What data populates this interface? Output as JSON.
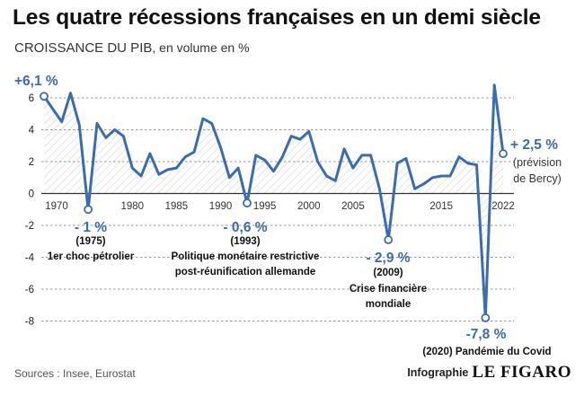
{
  "header": {
    "title": "Les quatre récessions françaises en un demi siècle",
    "subtitle_main": "CROISSANCE DU PIB",
    "subtitle_unit": ", en volume en %"
  },
  "footer": {
    "source": "Sources : Insee, Eurostat",
    "infographic_label": "Infographie",
    "brand": "LE FIGARO"
  },
  "colors": {
    "line": "#3a6cae",
    "hatch": "#d6d6d6",
    "grid": "#777777",
    "label_blue": "#3a6cae",
    "text": "#111111"
  },
  "chart_data": {
    "type": "line",
    "x": [
      1970,
      1971,
      1972,
      1973,
      1974,
      1975,
      1976,
      1977,
      1978,
      1979,
      1980,
      1981,
      1982,
      1983,
      1984,
      1985,
      1986,
      1987,
      1988,
      1989,
      1990,
      1991,
      1992,
      1993,
      1994,
      1995,
      1996,
      1997,
      1998,
      1999,
      2000,
      2001,
      2002,
      2003,
      2004,
      2005,
      2006,
      2007,
      2008,
      2009,
      2010,
      2011,
      2012,
      2013,
      2014,
      2015,
      2016,
      2017,
      2018,
      2019,
      2020,
      2021,
      2022
    ],
    "y": [
      6.1,
      5.3,
      4.5,
      6.3,
      4.3,
      -1.0,
      4.4,
      3.5,
      4.0,
      3.6,
      1.6,
      1.1,
      2.5,
      1.2,
      1.5,
      1.6,
      2.3,
      2.6,
      4.7,
      4.4,
      2.9,
      1.0,
      1.6,
      -0.6,
      2.4,
      2.1,
      1.4,
      2.3,
      3.6,
      3.4,
      3.9,
      2.0,
      1.1,
      0.8,
      2.8,
      1.6,
      2.4,
      2.4,
      0.3,
      -2.9,
      1.9,
      2.2,
      0.3,
      0.6,
      1.0,
      1.1,
      1.1,
      2.3,
      1.9,
      1.8,
      -7.8,
      6.8,
      2.5
    ],
    "xlim": [
      1970,
      2022
    ],
    "ylim": [
      -8,
      6
    ],
    "x_ticks": [
      "1970",
      "1980",
      "1985",
      "1990",
      "1995",
      "2000",
      "2005",
      "2015",
      "2022"
    ],
    "y_ticks": [
      "6",
      "4",
      "2",
      "0",
      "-2",
      "-4",
      "-6",
      "-8"
    ],
    "grid": "horizontal-dashed",
    "legend": "none",
    "annotations": [
      {
        "year": 1970,
        "value": "+6,1 %",
        "lines": []
      },
      {
        "year": 1975,
        "value": "- 1 %",
        "lines": [
          "(1975)",
          "1er choc pétrolier"
        ]
      },
      {
        "year": 1993,
        "value": "- 0,6 %",
        "lines": [
          "(1993)",
          "Politique monétaire restrictive",
          "post-réunification allemande"
        ]
      },
      {
        "year": 2009,
        "value": "- 2,9 %",
        "lines": [
          "(2009)",
          "Crise financière",
          "mondiale"
        ]
      },
      {
        "year": 2020,
        "value": "-7,8 %",
        "lines": [
          "(2020) Pandémie du Covid"
        ]
      },
      {
        "year": 2022,
        "value": "+ 2,5 %",
        "lines": [
          "(prévision",
          "de Bercy)"
        ]
      }
    ]
  }
}
